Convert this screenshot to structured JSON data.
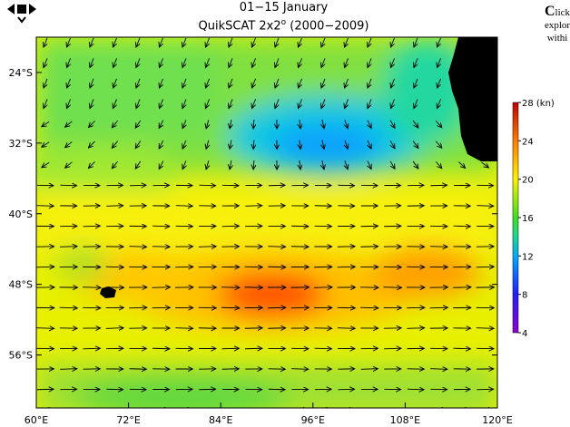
{
  "nav": {
    "prev_icon": "triangle-left-icon",
    "next_icon": "triangle-right-icon",
    "square_icon": "square-icon",
    "down_icon": "chevron-down-icon"
  },
  "title": {
    "line1": "01−15 January",
    "line2_base": "QuikSCAT 2x2",
    "line2_sup": "o",
    "line2_rest": " (2000−2009)"
  },
  "side_note": {
    "lead": "C",
    "l1": "lick",
    "l2": "explor",
    "l3": "withi"
  },
  "chart_data": {
    "type": "heatmap",
    "title": "01−15 January QuikSCAT 2x2° (2000−2009)",
    "x_ticks": [
      "60°E",
      "72°E",
      "84°E",
      "96°E",
      "108°E",
      "120°E"
    ],
    "x_values": [
      60,
      72,
      84,
      96,
      108,
      120
    ],
    "y_ticks": [
      "24°S",
      "32°S",
      "40°S",
      "48°S",
      "56°S"
    ],
    "y_values": [
      -24,
      -32,
      -40,
      -48,
      -56
    ],
    "xlim": [
      60,
      120
    ],
    "ylim": [
      -62,
      -20
    ],
    "colorbar": {
      "label": "28 (kn)",
      "ticks": [
        "28 (kn)",
        "24",
        "20",
        "16",
        "12",
        "8",
        "4"
      ],
      "tick_values": [
        28,
        24,
        20,
        16,
        12,
        8,
        4
      ],
      "range": [
        4,
        28
      ]
    },
    "colors": {
      "c4": "#9000d0",
      "c8": "#2020ff",
      "c12": "#00a8ff",
      "c14": "#20d890",
      "c16": "#40e020",
      "c20": "#fff000",
      "c24": "#ff8000",
      "c28": "#c00000"
    },
    "description_fields": {
      "wind_vectors": "arrows show wind direction over gridded field",
      "land": "black"
    }
  }
}
